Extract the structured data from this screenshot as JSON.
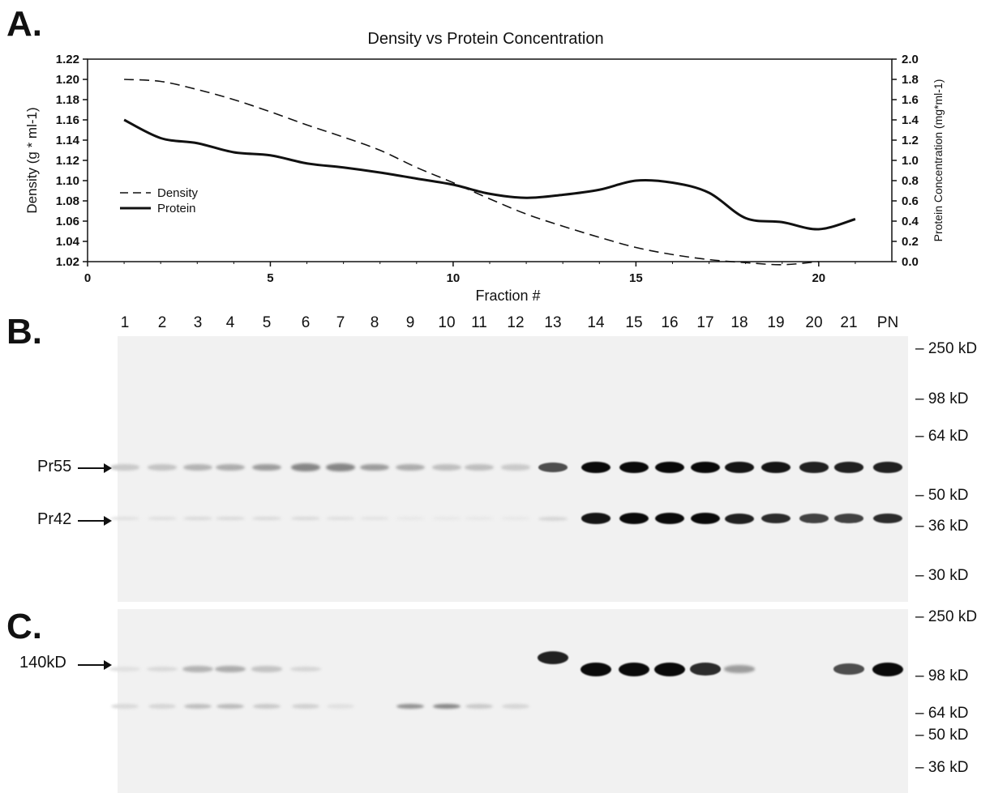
{
  "panels": {
    "a": "A.",
    "b": "B.",
    "c": "C."
  },
  "chart_data": {
    "type": "line",
    "title": "Density vs Protein Concentration",
    "xlabel": "Fraction #",
    "ylabel_left": "Density (g * ml-1)",
    "ylabel_right": "Protein Concentration (mg*ml-1)",
    "xlim": [
      0,
      22
    ],
    "ylim_left": [
      1.02,
      1.22
    ],
    "ylim_right": [
      0.0,
      2.0
    ],
    "x_ticks": [
      0,
      5,
      10,
      15,
      20
    ],
    "y_left_ticks": [
      "1.02",
      "1.04",
      "1.06",
      "1.08",
      "1.10",
      "1.12",
      "1.14",
      "1.16",
      "1.18",
      "1.20",
      "1.22"
    ],
    "y_right_ticks": [
      "0.0",
      "0.2",
      "0.4",
      "0.6",
      "0.8",
      "1.0",
      "1.2",
      "1.4",
      "1.6",
      "1.8",
      "2.0"
    ],
    "legend": [
      {
        "name": "Density",
        "style": "dashed"
      },
      {
        "name": "Protein",
        "style": "solid"
      }
    ],
    "series": [
      {
        "name": "Density",
        "axis": "left",
        "x": [
          1,
          2,
          3,
          4,
          5,
          6,
          7,
          8,
          9,
          10,
          11,
          12,
          13,
          14,
          15,
          16,
          17,
          18,
          19,
          20
        ],
        "values": [
          1.2,
          1.198,
          1.19,
          1.18,
          1.168,
          1.155,
          1.143,
          1.13,
          1.113,
          1.098,
          1.082,
          1.067,
          1.055,
          1.044,
          1.034,
          1.027,
          1.022,
          1.019,
          1.017,
          1.02
        ]
      },
      {
        "name": "Protein",
        "axis": "right",
        "x": [
          1,
          2,
          3,
          4,
          5,
          6,
          7,
          8,
          9,
          10,
          11,
          12,
          13,
          14,
          15,
          16,
          17,
          18,
          19,
          20,
          21
        ],
        "values": [
          1.4,
          1.22,
          1.17,
          1.08,
          1.05,
          0.97,
          0.93,
          0.88,
          0.82,
          0.76,
          0.67,
          0.63,
          0.66,
          0.71,
          0.8,
          0.78,
          0.68,
          0.43,
          0.39,
          0.32,
          0.42
        ]
      }
    ]
  },
  "blot": {
    "lanes": [
      "1",
      "2",
      "3",
      "4",
      "5",
      "6",
      "7",
      "8",
      "9",
      "10",
      "11",
      "12",
      "13",
      "14",
      "15",
      "16",
      "17",
      "18",
      "19",
      "20",
      "21",
      "PN"
    ],
    "b_markers": [
      "– 250 kD",
      "– 98 kD",
      "– 64 kD",
      "– 50 kD",
      "– 36 kD",
      "– 30 kD"
    ],
    "c_markers": [
      "– 250 kD",
      "– 98 kD",
      "– 64 kD",
      "– 50 kD",
      "– 36 kD"
    ],
    "b_arrows": [
      "Pr55",
      "Pr42"
    ],
    "c_arrows": [
      "140kD"
    ],
    "pr55_intensity": [
      0.15,
      0.18,
      0.25,
      0.28,
      0.35,
      0.45,
      0.45,
      0.35,
      0.28,
      0.2,
      0.2,
      0.15,
      0.7,
      1.0,
      1.0,
      1.0,
      1.0,
      0.95,
      0.95,
      0.9,
      0.9,
      0.9
    ],
    "pr42_intensity": [
      0.05,
      0.06,
      0.08,
      0.08,
      0.08,
      0.08,
      0.06,
      0.04,
      0.02,
      0.02,
      0.02,
      0.02,
      0.1,
      0.95,
      1.0,
      1.0,
      1.0,
      0.9,
      0.85,
      0.75,
      0.75,
      0.85
    ],
    "gp140_intensity": [
      0.05,
      0.08,
      0.25,
      0.28,
      0.18,
      0.1,
      0,
      0,
      0,
      0,
      0,
      0,
      0.9,
      1.0,
      1.0,
      1.0,
      0.85,
      0.35,
      0,
      0,
      0.7,
      1.0
    ],
    "c_low_intensity": [
      0.08,
      0.1,
      0.2,
      0.22,
      0.15,
      0.12,
      0.05,
      0,
      0.4,
      0.45,
      0.15,
      0.1,
      0,
      0,
      0,
      0,
      0,
      0,
      0,
      0,
      0,
      0
    ]
  }
}
